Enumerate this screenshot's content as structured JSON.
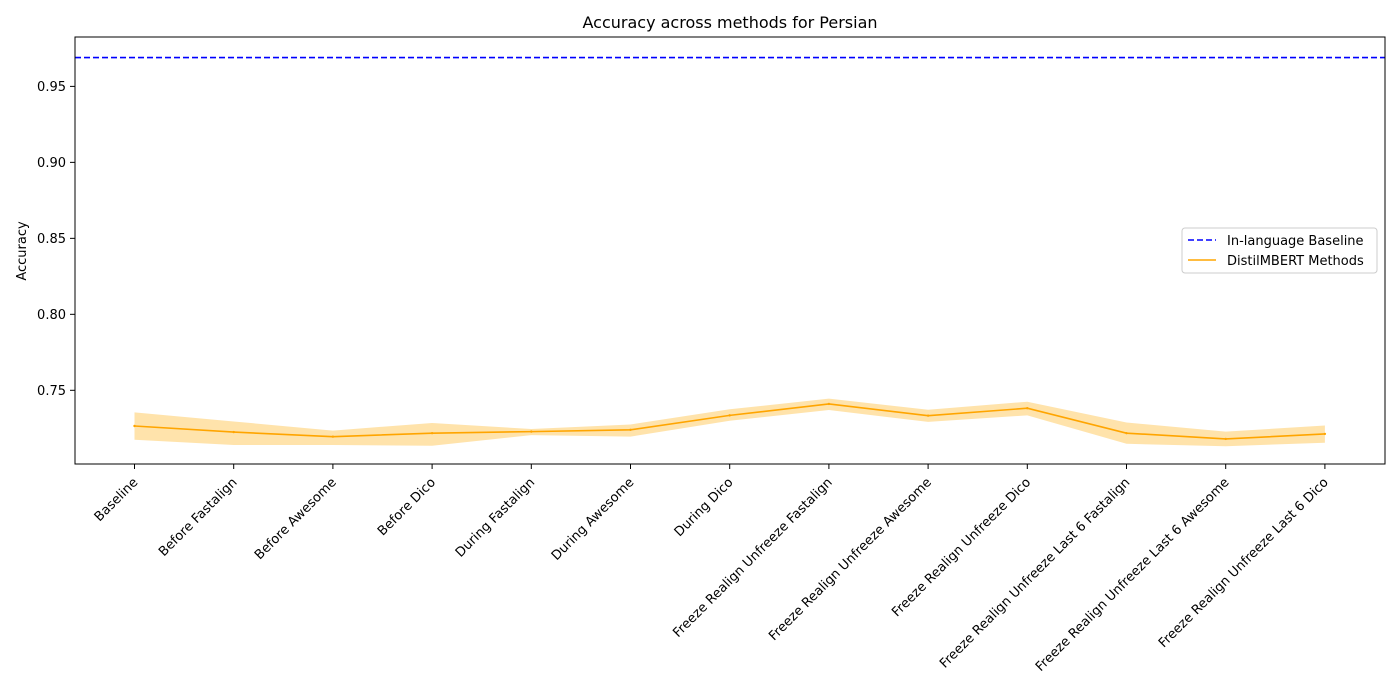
{
  "chart_data": {
    "type": "line",
    "title": "Accuracy across methods for Persian",
    "xlabel": "",
    "ylabel": "Accuracy",
    "ylim": [
      0.7015,
      0.9825
    ],
    "yticks": [
      "0.75",
      "0.80",
      "0.85",
      "0.90",
      "0.95"
    ],
    "grid": false,
    "legend_position": "center-right",
    "categories": [
      "Baseline",
      "Before Fastalign",
      "Before Awesome",
      "Before Dico",
      "During Fastalign",
      "During Awesome",
      "During Dico",
      "Freeze Realign Unfreeze Fastalign",
      "Freeze Realign Unfreeze Awesome",
      "Freeze Realign Unfreeze Dico",
      "Freeze Realign Unfreeze Last 6 Fastalign",
      "Freeze Realign Unfreeze Last 6 Awesome",
      "Freeze Realign Unfreeze Last 6 Dico"
    ],
    "series": [
      {
        "name": "In-language Baseline",
        "kind": "hline",
        "value": 0.969,
        "color": "#0000ff",
        "dashed": true
      },
      {
        "name": "DistilMBERT Methods",
        "kind": "line",
        "color": "#ffa500",
        "band_color": "#ffd98f",
        "values": [
          0.7265,
          0.7225,
          0.7195,
          0.7218,
          0.7228,
          0.724,
          0.7335,
          0.741,
          0.7333,
          0.7382,
          0.7218,
          0.718,
          0.7213
        ],
        "lower": [
          0.7175,
          0.714,
          0.714,
          0.7135,
          0.7205,
          0.7195,
          0.73,
          0.737,
          0.7292,
          0.7335,
          0.7148,
          0.7132,
          0.7155
        ],
        "upper": [
          0.7355,
          0.7295,
          0.7235,
          0.7285,
          0.7245,
          0.7275,
          0.7375,
          0.7445,
          0.7372,
          0.7425,
          0.7288,
          0.7228,
          0.7268
        ]
      }
    ]
  }
}
